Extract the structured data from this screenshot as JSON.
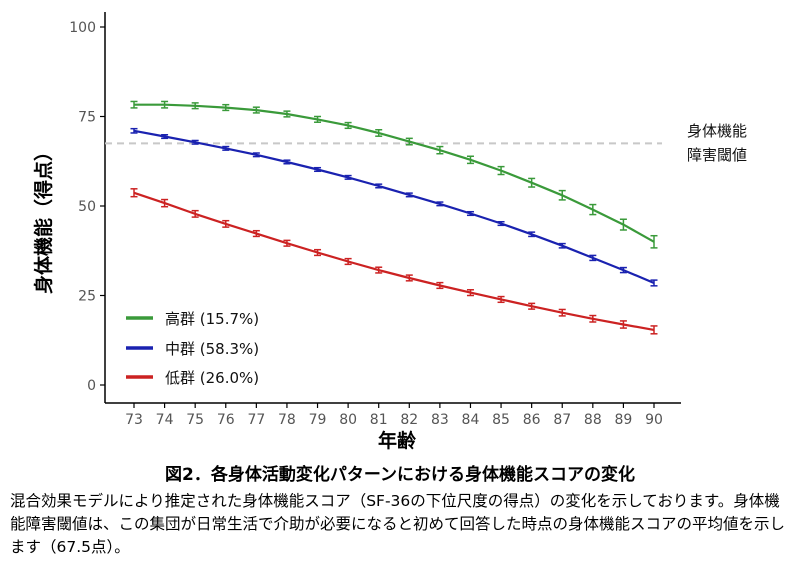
{
  "chart_data": {
    "type": "line",
    "x": [
      73,
      74,
      75,
      76,
      77,
      78,
      79,
      80,
      81,
      82,
      83,
      84,
      85,
      86,
      87,
      88,
      89,
      90
    ],
    "xlabel": "年齢",
    "ylabel": "身体機能（得点）",
    "ylim": [
      0,
      100
    ],
    "yticks": [
      0,
      25,
      50,
      75,
      100
    ],
    "grid": false,
    "legend_position": "bottom-left",
    "series": [
      {
        "name": "高群 (15.7%)",
        "color": "#3a9a3a",
        "values": [
          78.3,
          78.3,
          78.0,
          77.5,
          76.8,
          75.7,
          74.2,
          72.5,
          70.4,
          68.0,
          65.6,
          62.9,
          59.9,
          56.5,
          53.0,
          49.0,
          44.8,
          40.0
        ],
        "err": [
          0.9,
          0.9,
          0.8,
          0.8,
          0.8,
          0.8,
          0.8,
          0.8,
          0.9,
          0.9,
          1.0,
          1.0,
          1.1,
          1.2,
          1.3,
          1.4,
          1.5,
          1.7
        ]
      },
      {
        "name": "中群 (58.3%)",
        "color": "#1a22b0",
        "values": [
          71.0,
          69.4,
          67.8,
          66.1,
          64.3,
          62.3,
          60.2,
          58.0,
          55.6,
          53.1,
          50.6,
          47.9,
          45.1,
          42.1,
          38.9,
          35.5,
          32.1,
          28.5
        ],
        "err": [
          0.6,
          0.5,
          0.5,
          0.5,
          0.5,
          0.5,
          0.5,
          0.5,
          0.5,
          0.5,
          0.5,
          0.5,
          0.5,
          0.6,
          0.6,
          0.7,
          0.7,
          0.8
        ]
      },
      {
        "name": "低群 (26.0%)",
        "color": "#cc2222",
        "values": [
          53.7,
          50.8,
          47.8,
          45.0,
          42.3,
          39.6,
          37.0,
          34.5,
          32.1,
          29.9,
          27.8,
          25.8,
          23.9,
          22.0,
          20.2,
          18.5,
          16.9,
          15.4
        ],
        "err": [
          1.1,
          1.0,
          0.9,
          0.9,
          0.8,
          0.8,
          0.8,
          0.8,
          0.8,
          0.8,
          0.8,
          0.8,
          0.8,
          0.8,
          0.9,
          0.9,
          1.0,
          1.1
        ]
      }
    ],
    "threshold": {
      "value": 67.5,
      "label_line1": "身体機能",
      "label_line2": "障害閾値",
      "color": "#c8c8c8"
    }
  },
  "caption": {
    "title": "図2．各身体活動変化パターンにおける身体機能スコアの変化",
    "description": "混合効果モデルにより推定された身体機能スコア（SF-36の下位尺度の得点）の変化を示しております。身体機能障害閾値は、この集団が日常生活で介助が必要になると初めて回答した時点の身体機能スコアの平均値を示します（67.5点）。"
  }
}
